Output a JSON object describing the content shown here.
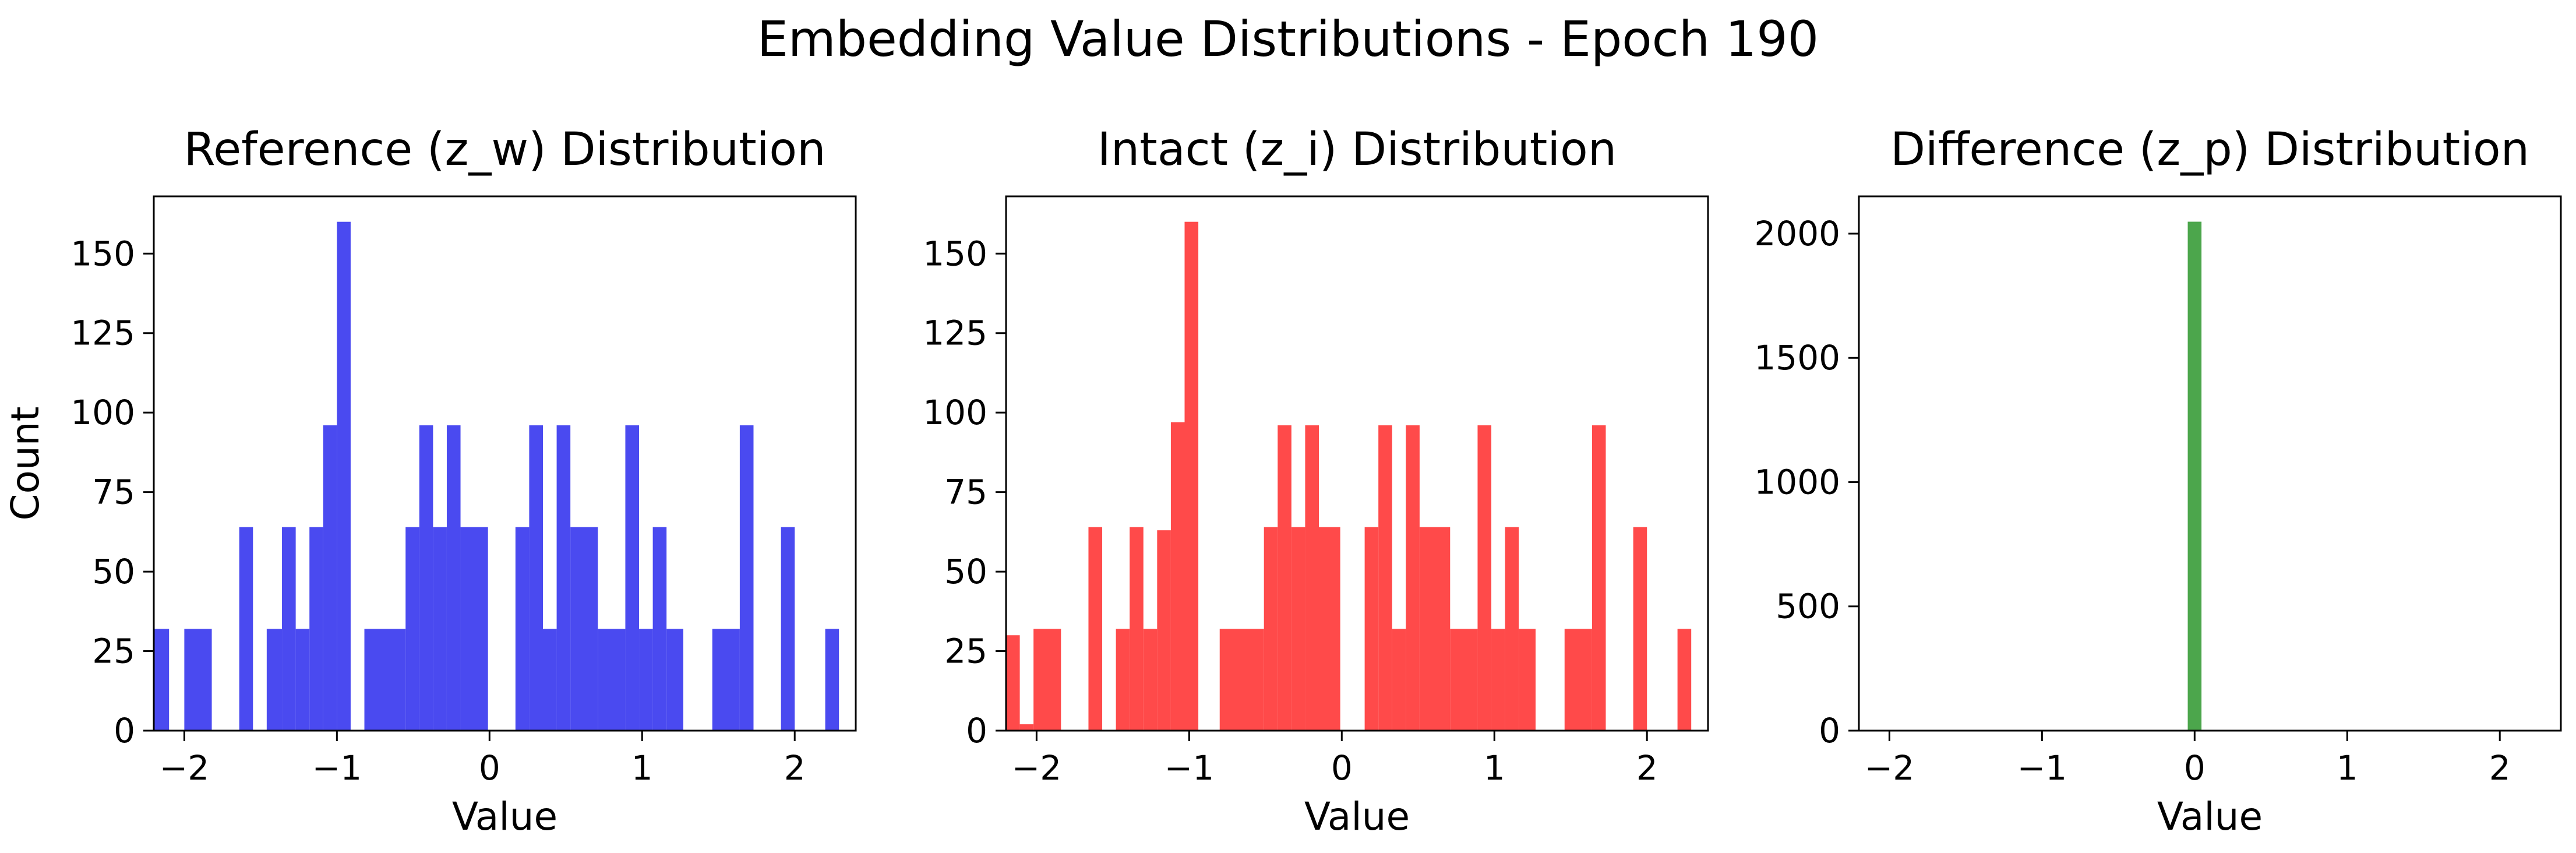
{
  "figure": {
    "suptitle": "Embedding Value Distributions - Epoch 190"
  },
  "chart_data": [
    {
      "type": "bar",
      "title": "Reference (z_w) Distribution",
      "xlabel": "Value",
      "ylabel": "Count",
      "xlim": [
        -2.2,
        2.4
      ],
      "ylim": [
        0,
        168
      ],
      "xticks": [
        -2,
        -1,
        0,
        1,
        2
      ],
      "yticks": [
        0,
        25,
        50,
        75,
        100,
        125,
        150
      ],
      "color": "#4a4af0",
      "series": [
        {
          "name": "",
          "bins": [
            [
              -2.2,
              -2.1,
              32
            ],
            [
              -2.0,
              -1.82,
              32
            ],
            [
              -1.64,
              -1.55,
              64
            ],
            [
              -1.46,
              -1.36,
              32
            ],
            [
              -1.36,
              -1.27,
              64
            ],
            [
              -1.27,
              -1.18,
              32
            ],
            [
              -1.18,
              -1.09,
              64
            ],
            [
              -1.09,
              -1.0,
              96
            ],
            [
              -1.0,
              -0.91,
              160
            ],
            [
              -0.82,
              -0.55,
              32
            ],
            [
              -0.55,
              -0.46,
              64
            ],
            [
              -0.46,
              -0.37,
              96
            ],
            [
              -0.37,
              -0.28,
              64
            ],
            [
              -0.28,
              -0.19,
              96
            ],
            [
              -0.19,
              -0.01,
              64
            ],
            [
              0.17,
              0.26,
              64
            ],
            [
              0.26,
              0.35,
              96
            ],
            [
              0.35,
              0.44,
              32
            ],
            [
              0.44,
              0.53,
              96
            ],
            [
              0.53,
              0.71,
              64
            ],
            [
              0.71,
              0.89,
              32
            ],
            [
              0.89,
              0.98,
              96
            ],
            [
              0.98,
              1.07,
              32
            ],
            [
              1.07,
              1.16,
              64
            ],
            [
              1.16,
              1.27,
              32
            ],
            [
              1.46,
              1.64,
              32
            ],
            [
              1.64,
              1.73,
              96
            ],
            [
              1.91,
              2.0,
              64
            ],
            [
              2.2,
              2.29,
              32
            ]
          ]
        }
      ]
    },
    {
      "type": "bar",
      "title": "Intact (z_i) Distribution",
      "xlabel": "Value",
      "ylabel": "",
      "xlim": [
        -2.2,
        2.4
      ],
      "ylim": [
        0,
        168
      ],
      "xticks": [
        -2,
        -1,
        0,
        1,
        2
      ],
      "yticks": [
        0,
        25,
        50,
        75,
        100,
        125,
        150
      ],
      "color": "#ff4a4a",
      "series": [
        {
          "name": "",
          "bins": [
            [
              -2.2,
              -2.11,
              30
            ],
            [
              -2.11,
              -2.02,
              2
            ],
            [
              -2.02,
              -1.84,
              32
            ],
            [
              -1.66,
              -1.57,
              64
            ],
            [
              -1.48,
              -1.39,
              32
            ],
            [
              -1.39,
              -1.3,
              64
            ],
            [
              -1.3,
              -1.21,
              32
            ],
            [
              -1.21,
              -1.12,
              63
            ],
            [
              -1.12,
              -1.03,
              97
            ],
            [
              -1.03,
              -0.94,
              160
            ],
            [
              -0.8,
              -0.51,
              32
            ],
            [
              -0.51,
              -0.42,
              64
            ],
            [
              -0.42,
              -0.33,
              96
            ],
            [
              -0.33,
              -0.24,
              64
            ],
            [
              -0.24,
              -0.15,
              96
            ],
            [
              -0.15,
              -0.01,
              64
            ],
            [
              0.15,
              0.24,
              64
            ],
            [
              0.24,
              0.33,
              96
            ],
            [
              0.33,
              0.42,
              32
            ],
            [
              0.42,
              0.51,
              96
            ],
            [
              0.51,
              0.71,
              64
            ],
            [
              0.71,
              0.89,
              32
            ],
            [
              0.89,
              0.98,
              96
            ],
            [
              0.98,
              1.07,
              32
            ],
            [
              1.07,
              1.16,
              64
            ],
            [
              1.16,
              1.27,
              32
            ],
            [
              1.46,
              1.64,
              32
            ],
            [
              1.64,
              1.73,
              96
            ],
            [
              1.91,
              2.0,
              64
            ],
            [
              2.2,
              2.29,
              32
            ]
          ]
        }
      ]
    },
    {
      "type": "bar",
      "title": "Difference (z_p) Distribution",
      "xlabel": "Value",
      "ylabel": "",
      "xlim": [
        -2.2,
        2.4
      ],
      "ylim": [
        0,
        2150
      ],
      "xticks": [
        -2,
        -1,
        0,
        1,
        2
      ],
      "yticks": [
        0,
        500,
        1000,
        1500,
        2000
      ],
      "color": "#4ca64c",
      "series": [
        {
          "name": "",
          "bins": [
            [
              -0.045,
              0.045,
              2048
            ]
          ]
        }
      ]
    }
  ]
}
